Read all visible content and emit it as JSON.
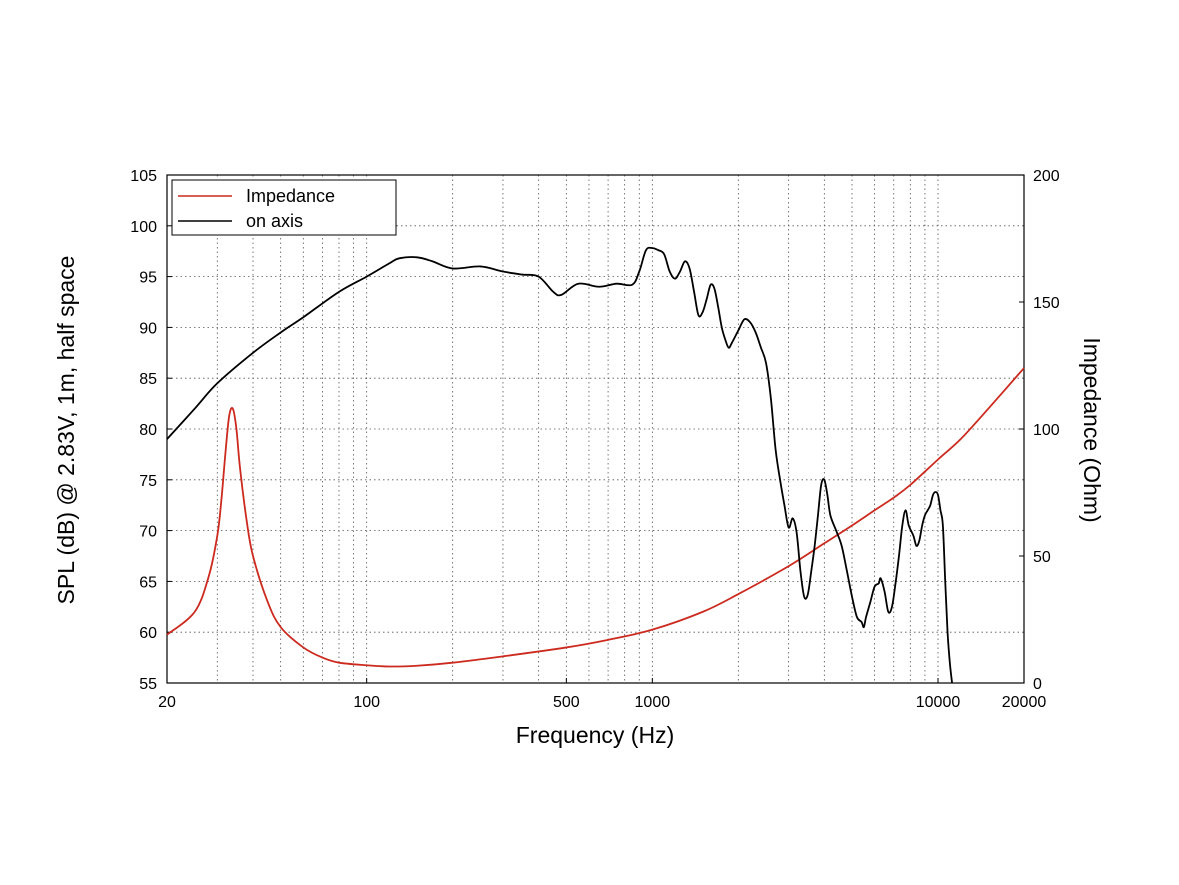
{
  "chart_data": {
    "type": "line",
    "title": "",
    "xlabel": "Frequency (Hz)",
    "ylabel": "SPL (dB) @ 2.83V, 1m, half space",
    "y2label": "Impedance (Ohm)",
    "xscale": "log",
    "xlim": [
      20,
      20000
    ],
    "ylim": [
      55,
      105
    ],
    "y2lim": [
      0,
      200
    ],
    "x_ticks": [
      "20",
      "100",
      "500",
      "1000",
      "10000",
      "20000"
    ],
    "y_ticks": [
      "55",
      "60",
      "65",
      "70",
      "75",
      "80",
      "85",
      "90",
      "95",
      "100",
      "105"
    ],
    "y2_ticks": [
      "0",
      "50",
      "100",
      "150",
      "200"
    ],
    "grid": true,
    "legend_position": "top-left",
    "series": [
      {
        "name": "Impedance",
        "axis": "right",
        "color": "#cc2a1e",
        "points": [
          [
            20,
            19
          ],
          [
            25,
            28
          ],
          [
            28,
            42
          ],
          [
            30,
            58
          ],
          [
            31,
            72
          ],
          [
            32,
            90
          ],
          [
            33,
            105
          ],
          [
            34,
            108
          ],
          [
            35,
            100
          ],
          [
            36,
            85
          ],
          [
            38,
            64
          ],
          [
            40,
            50
          ],
          [
            45,
            32
          ],
          [
            50,
            22
          ],
          [
            60,
            14
          ],
          [
            70,
            10
          ],
          [
            80,
            8
          ],
          [
            100,
            7
          ],
          [
            120,
            6.5
          ],
          [
            150,
            6.8
          ],
          [
            200,
            8
          ],
          [
            300,
            10.5
          ],
          [
            500,
            14
          ],
          [
            700,
            17
          ],
          [
            1000,
            21
          ],
          [
            1500,
            28
          ],
          [
            2000,
            35
          ],
          [
            3000,
            46
          ],
          [
            4000,
            55
          ],
          [
            5000,
            62
          ],
          [
            6000,
            68
          ],
          [
            7000,
            73
          ],
          [
            8000,
            78
          ],
          [
            10000,
            88
          ],
          [
            12000,
            96
          ],
          [
            15000,
            108
          ],
          [
            20000,
            124
          ]
        ]
      },
      {
        "name": "on axis",
        "axis": "left",
        "color": "#000000",
        "points": [
          [
            20,
            79
          ],
          [
            25,
            82
          ],
          [
            30,
            84.5
          ],
          [
            40,
            87.5
          ],
          [
            50,
            89.5
          ],
          [
            60,
            91
          ],
          [
            80,
            93.5
          ],
          [
            100,
            95
          ],
          [
            120,
            96.3
          ],
          [
            130,
            96.8
          ],
          [
            150,
            96.9
          ],
          [
            170,
            96.5
          ],
          [
            200,
            95.8
          ],
          [
            250,
            96
          ],
          [
            300,
            95.5
          ],
          [
            350,
            95.2
          ],
          [
            400,
            95
          ],
          [
            450,
            93.5
          ],
          [
            480,
            93.2
          ],
          [
            550,
            94.3
          ],
          [
            650,
            94
          ],
          [
            750,
            94.3
          ],
          [
            850,
            94.2
          ],
          [
            900,
            95.5
          ],
          [
            950,
            97.6
          ],
          [
            1000,
            97.8
          ],
          [
            1050,
            97.6
          ],
          [
            1100,
            97.2
          ],
          [
            1150,
            95.5
          ],
          [
            1200,
            94.8
          ],
          [
            1250,
            95.5
          ],
          [
            1300,
            96.5
          ],
          [
            1350,
            95.8
          ],
          [
            1400,
            93.5
          ],
          [
            1450,
            91.2
          ],
          [
            1500,
            91.5
          ],
          [
            1550,
            92.8
          ],
          [
            1600,
            94.2
          ],
          [
            1650,
            93.8
          ],
          [
            1700,
            92
          ],
          [
            1750,
            90
          ],
          [
            1800,
            88.8
          ],
          [
            1850,
            88
          ],
          [
            1900,
            88.5
          ],
          [
            2000,
            89.7
          ],
          [
            2100,
            90.8
          ],
          [
            2200,
            90.5
          ],
          [
            2300,
            89.5
          ],
          [
            2400,
            88
          ],
          [
            2500,
            86.5
          ],
          [
            2600,
            83
          ],
          [
            2700,
            78
          ],
          [
            2800,
            75
          ],
          [
            2900,
            72.5
          ],
          [
            3000,
            70.3
          ],
          [
            3100,
            71.2
          ],
          [
            3200,
            69.8
          ],
          [
            3300,
            66
          ],
          [
            3400,
            63.5
          ],
          [
            3500,
            63.7
          ],
          [
            3600,
            66
          ],
          [
            3700,
            68.5
          ],
          [
            3800,
            71.5
          ],
          [
            3900,
            74.5
          ],
          [
            4000,
            75
          ],
          [
            4100,
            73.5
          ],
          [
            4200,
            71.5
          ],
          [
            4400,
            70
          ],
          [
            4600,
            68.5
          ],
          [
            4800,
            66
          ],
          [
            5000,
            63.5
          ],
          [
            5200,
            61.5
          ],
          [
            5400,
            61
          ],
          [
            5500,
            60.5
          ],
          [
            5600,
            61.5
          ],
          [
            5800,
            63
          ],
          [
            6000,
            64.5
          ],
          [
            6200,
            64.8
          ],
          [
            6300,
            65.3
          ],
          [
            6500,
            64
          ],
          [
            6700,
            62
          ],
          [
            6900,
            62.5
          ],
          [
            7100,
            64.8
          ],
          [
            7300,
            67.5
          ],
          [
            7500,
            70.5
          ],
          [
            7700,
            72
          ],
          [
            7900,
            70.5
          ],
          [
            8200,
            69.5
          ],
          [
            8400,
            68.5
          ],
          [
            8600,
            69
          ],
          [
            8800,
            70.5
          ],
          [
            9000,
            71.5
          ],
          [
            9200,
            72
          ],
          [
            9400,
            72.5
          ],
          [
            9600,
            73.5
          ],
          [
            9800,
            73.8
          ],
          [
            10000,
            73.5
          ],
          [
            10200,
            72
          ],
          [
            10400,
            70.5
          ],
          [
            10600,
            65
          ],
          [
            10800,
            60
          ],
          [
            11000,
            57
          ],
          [
            11200,
            55
          ]
        ]
      }
    ]
  }
}
